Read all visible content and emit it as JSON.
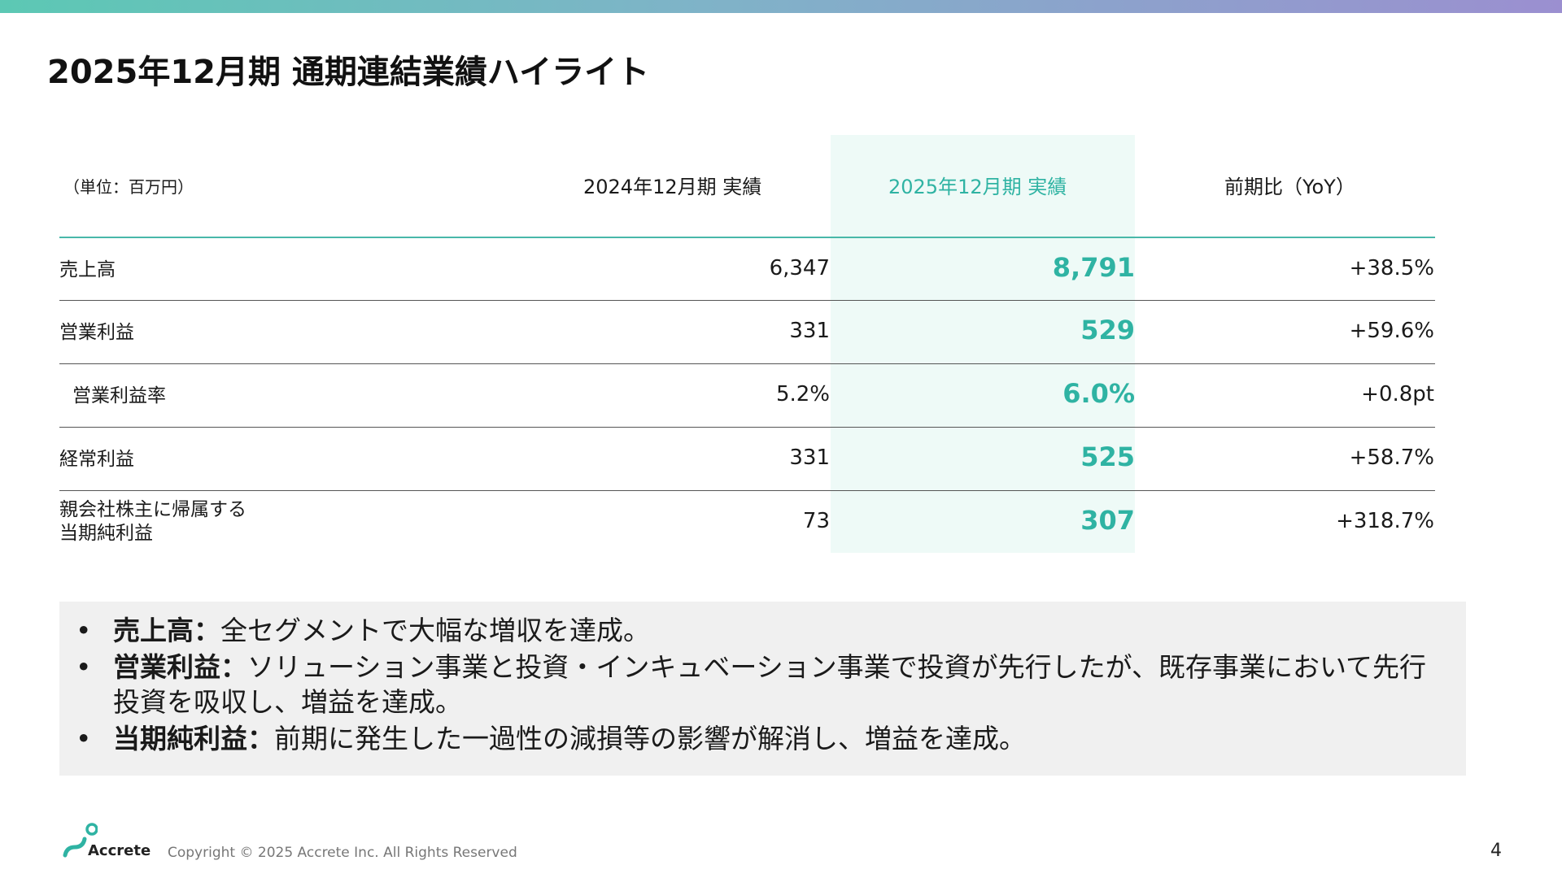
{
  "slide": {
    "title": "2025年12月期 通期連結業績ハイライト",
    "page_number": "4"
  },
  "table": {
    "unit": "（単位：百万円）",
    "headers": {
      "prev": "2024年12月期 実績",
      "curr": "2025年12月期 実績",
      "yoy": "前期比（YoY）"
    },
    "rows": [
      {
        "label": "売上高",
        "prev": "6,347",
        "curr": "8,791",
        "yoy": "+38.5%"
      },
      {
        "label": "営業利益",
        "prev": "331",
        "curr": "529",
        "yoy": "+59.6%"
      },
      {
        "label": "営業利益率",
        "prev": "5.2%",
        "curr": "6.0%",
        "yoy": "+0.8pt"
      },
      {
        "label": "経常利益",
        "prev": "331",
        "curr": "525",
        "yoy": "+58.7%"
      },
      {
        "label_line1": "親会社株主に帰属する",
        "label_line2": "当期純利益",
        "prev": "73",
        "curr": "307",
        "yoy": "+318.7%"
      }
    ]
  },
  "notes": [
    {
      "key": "売上高：",
      "text": "全セグメントで大幅な増収を達成。"
    },
    {
      "key": "営業利益：",
      "text": "ソリューション事業と投資・インキュベーション事業で投資が先行したが、既存事業において先行",
      "text2": "投資を吸収し、増益を達成。"
    },
    {
      "key": "当期純利益：",
      "text": "前期に発生した一過性の減損等の影響が解消し、増益を達成。"
    }
  ],
  "footer": {
    "logo_text": "Accrete",
    "copyright": "Copyright © 2025 Accrete Inc. All Rights Reserved"
  },
  "colors": {
    "accent": "#2fb3a3",
    "highlight_bg": "#eefaf7",
    "notes_bg": "#f0f0f0"
  }
}
